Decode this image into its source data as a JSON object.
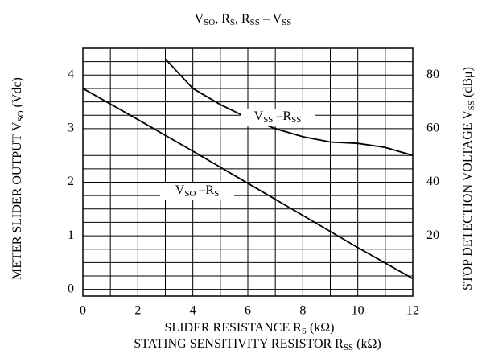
{
  "chart_data": {
    "type": "line",
    "title": [
      "V",
      "SO",
      ",  R",
      "S",
      ",  R",
      "SS",
      "   –  V",
      "SS"
    ],
    "ylabel": [
      "METER SLIDER OUTPUT  V",
      "SO",
      "  (Vdc)"
    ],
    "y2label": [
      "STOP DETECTION VOLTAGE  V",
      "SS",
      "  (dBμ)"
    ],
    "xlabel": [
      "SLIDER RESISTANCE  R",
      "S",
      "  (kΩ)"
    ],
    "xlabel2": [
      "STATING SENSITIVITY RESISTOR  R",
      "SS",
      "  (kΩ)"
    ],
    "xlim": [
      0,
      12
    ],
    "xticks": [
      0,
      2,
      4,
      6,
      8,
      10,
      12
    ],
    "xminorticks": [
      0,
      1,
      2,
      3,
      4,
      5,
      6,
      7,
      8,
      9,
      10,
      11,
      12
    ],
    "ylim": [
      -0.125,
      4.5
    ],
    "yticks": [
      0,
      1,
      2,
      3,
      4
    ],
    "yminorticks": [
      0,
      0.25,
      0.5,
      0.75,
      1,
      1.25,
      1.5,
      1.75,
      2,
      2.25,
      2.5,
      2.75,
      3,
      3.25,
      3.5,
      3.75,
      4,
      4.25,
      4.5
    ],
    "y2lim": [
      -2.5,
      90
    ],
    "y2ticks": [
      20,
      40,
      60,
      80
    ],
    "grid": true,
    "series": [
      {
        "name": [
          "V",
          "SO",
          " –R",
          "S"
        ],
        "color": "#000000",
        "axis": "y",
        "x": [
          0,
          2,
          4,
          6,
          8,
          10,
          12
        ],
        "values": [
          3.75,
          3.17,
          2.58,
          1.98,
          1.38,
          0.78,
          0.2
        ]
      },
      {
        "name": [
          "V",
          "SS",
          " –R",
          "SS"
        ],
        "color": "#000000",
        "axis": "y2",
        "x": [
          3,
          4,
          5,
          6,
          7,
          8,
          9,
          10,
          11,
          12
        ],
        "values": [
          86,
          75,
          69,
          64,
          60,
          57,
          55,
          54.5,
          53,
          50
        ]
      }
    ]
  }
}
